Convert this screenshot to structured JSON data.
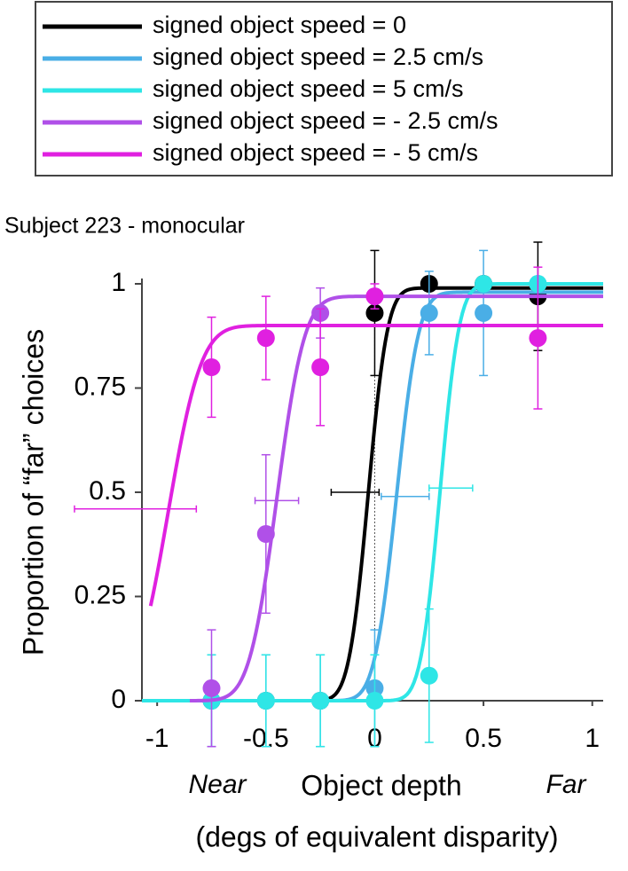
{
  "chart_data": {
    "type": "psychometric",
    "title": "Subject 223 - monocular",
    "y_label": "Proportion of “far” choices",
    "x_label": "Object depth",
    "x_sublabel": "(degs of equivalent disparity)",
    "x_near": "Near",
    "x_far": "Far",
    "xlim": [
      -1.07,
      1.05
    ],
    "ylim": [
      0,
      1.0
    ],
    "xticks": [
      -1,
      -0.5,
      0,
      0.5,
      1
    ],
    "yticks": [
      0,
      0.25,
      0.5,
      0.75,
      1
    ],
    "reference_x": 0,
    "x": [
      -0.75,
      -0.5,
      -0.25,
      0,
      0.25,
      0.5,
      0.75
    ],
    "series": [
      {
        "name": "signed object speed = 0",
        "color": "#000000",
        "values": [
          0,
          0,
          0,
          0.93,
          1,
          1,
          0.97
        ],
        "yerr": [
          null,
          null,
          null,
          0.15,
          null,
          null,
          0.13
        ],
        "fit": {
          "mu": -0.03,
          "sigma": 0.07,
          "top": 0.99,
          "from": -0.35
        },
        "pse": {
          "y": 0.5,
          "x": [
            -0.2,
            0.02
          ]
        }
      },
      {
        "name": "signed object speed = 2.5 cm/s",
        "color": "#4aaee6",
        "values": [
          0,
          0,
          0,
          0.03,
          0.93,
          0.93,
          1
        ],
        "yerr": [
          0.11,
          0.11,
          0.11,
          0.14,
          0.1,
          0.15,
          null
        ],
        "fit": {
          "mu": 0.1,
          "sigma": 0.08,
          "top": 0.98,
          "from": -0.2
        },
        "pse": {
          "y": 0.49,
          "x": [
            0.03,
            0.25
          ]
        }
      },
      {
        "name": "signed object speed = 5 cm/s",
        "color": "#2ee6e6",
        "values": [
          0,
          0,
          0,
          0,
          0.06,
          1,
          1
        ],
        "yerr": [
          0.11,
          0.11,
          0.11,
          0.11,
          0.16,
          null,
          null
        ],
        "fit": {
          "mu": 0.3,
          "sigma": 0.07,
          "top": 1,
          "from": -1.07
        },
        "pse": {
          "y": 0.51,
          "x": [
            0.25,
            0.45
          ]
        }
      },
      {
        "name": "signed object speed = - 2.5 cm/s",
        "color": "#b050e8",
        "values": [
          0.03,
          0.4,
          0.93,
          0.97,
          null,
          null,
          null
        ],
        "yerr": [
          0.14,
          0.19,
          0.06,
          null,
          null,
          null,
          null
        ],
        "fit": {
          "mu": -0.45,
          "sigma": 0.1,
          "top": 0.97,
          "from": -0.85
        },
        "pse": {
          "y": 0.48,
          "x": [
            -0.55,
            -0.35
          ]
        }
      },
      {
        "name": "signed object speed = - 5 cm/s",
        "color": "#e020e0",
        "values": [
          0.8,
          0.87,
          0.8,
          0.97,
          null,
          null,
          0.87
        ],
        "yerr": [
          0.12,
          0.1,
          0.14,
          0.03,
          null,
          null,
          0.17
        ],
        "fit": {
          "mu": -0.95,
          "sigma": 0.12,
          "top": 0.9,
          "from": -1.03
        },
        "pse": {
          "y": 0.46,
          "x": [
            -1.38,
            -0.82
          ]
        }
      }
    ]
  }
}
